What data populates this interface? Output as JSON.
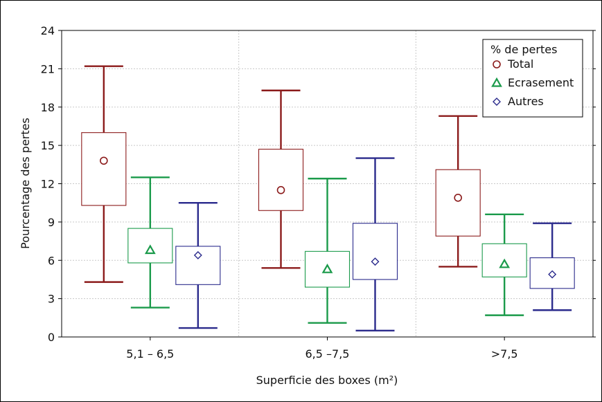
{
  "chart_data": {
    "type": "boxplot",
    "title": "",
    "xlabel": "Superficie des boxes (m²)",
    "ylabel": "Pourcentage des pertes",
    "ylim": [
      0,
      24
    ],
    "yticks": [
      0,
      3,
      6,
      9,
      12,
      15,
      18,
      21,
      24
    ],
    "grid": true,
    "legend_position": "top-right",
    "legend_title": "% de pertes",
    "categories": [
      "5,1 – 6,5",
      "6,5 –7,5",
      ">7,5"
    ],
    "series": [
      {
        "name": "Total",
        "color": "#8b1a1a",
        "marker": "circle",
        "boxes": [
          {
            "whisker_low": 4.3,
            "q1": 10.3,
            "mean": 13.8,
            "q3": 16.0,
            "whisker_high": 21.2
          },
          {
            "whisker_low": 5.4,
            "q1": 9.9,
            "mean": 11.5,
            "q3": 14.7,
            "whisker_high": 19.3
          },
          {
            "whisker_low": 5.5,
            "q1": 7.9,
            "mean": 10.9,
            "q3": 13.1,
            "whisker_high": 17.3
          }
        ]
      },
      {
        "name": "Ecrasement",
        "color": "#1a9a4a",
        "marker": "triangle",
        "boxes": [
          {
            "whisker_low": 2.3,
            "q1": 5.8,
            "mean": 6.8,
            "q3": 8.5,
            "whisker_high": 12.5
          },
          {
            "whisker_low": 1.1,
            "q1": 3.9,
            "mean": 5.3,
            "q3": 6.7,
            "whisker_high": 12.4
          },
          {
            "whisker_low": 1.7,
            "q1": 4.7,
            "mean": 5.7,
            "q3": 7.3,
            "whisker_high": 9.6
          }
        ]
      },
      {
        "name": "Autres",
        "color": "#2a2a8c",
        "marker": "diamond",
        "boxes": [
          {
            "whisker_low": 0.7,
            "q1": 4.1,
            "mean": 6.4,
            "q3": 7.1,
            "whisker_high": 10.5
          },
          {
            "whisker_low": 0.5,
            "q1": 4.5,
            "mean": 5.9,
            "q3": 8.9,
            "whisker_high": 14.0
          },
          {
            "whisker_low": 2.1,
            "q1": 3.8,
            "mean": 4.9,
            "q3": 6.2,
            "whisker_high": 8.9
          }
        ]
      }
    ]
  }
}
